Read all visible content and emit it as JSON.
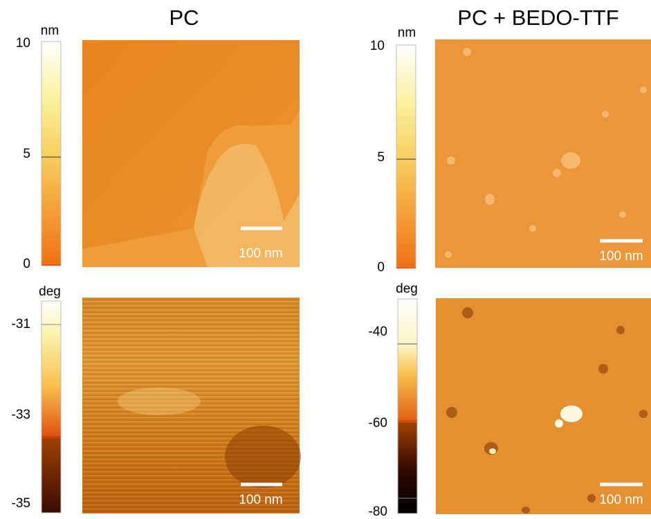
{
  "columns": [
    {
      "title": "PC",
      "height_panel": {
        "unit": "nm",
        "ticks": [
          "10",
          "5",
          "0"
        ],
        "scale_bar": "100 nm"
      },
      "phase_panel": {
        "unit": "deg",
        "ticks": [
          "-31",
          "-33",
          "-35"
        ],
        "scale_bar": "100 nm"
      }
    },
    {
      "title": "PC + BEDO-TTF",
      "height_panel": {
        "unit": "nm",
        "ticks": [
          "10",
          "5",
          "0"
        ],
        "scale_bar": "100 nm"
      },
      "phase_panel": {
        "unit": "deg",
        "ticks": [
          "-40",
          "-60",
          "-80"
        ],
        "scale_bar": "100 nm"
      }
    }
  ]
}
